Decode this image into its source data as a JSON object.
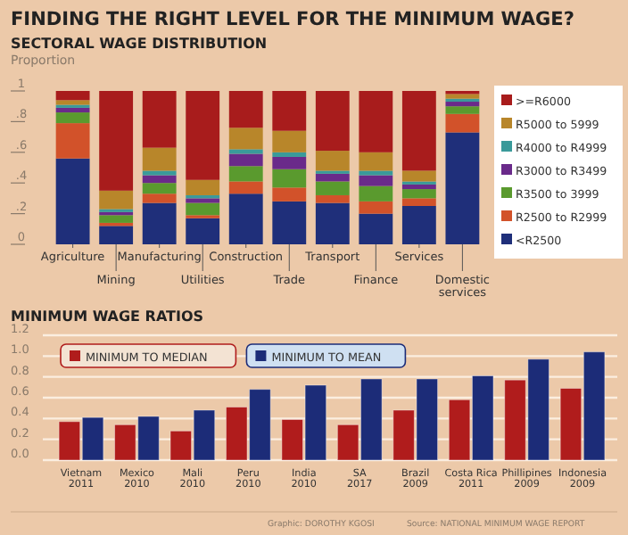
{
  "chart_data": [
    {
      "type": "bar",
      "title": "FINDING THE RIGHT LEVEL FOR THE MINIMUM WAGE?",
      "subtitle": "SECTORAL WAGE DISTRIBUTION",
      "ylabel": "Proportion",
      "stacked": true,
      "categories": [
        "Agriculture",
        "Mining",
        "Manufacturing",
        "Utilities",
        "Construction",
        "Trade",
        "Transport",
        "Finance",
        "Services",
        "Domestic\nservices"
      ],
      "series": [
        {
          "name": "<R2500",
          "color": "#1f2f7a",
          "values": [
            0.56,
            0.12,
            0.27,
            0.17,
            0.33,
            0.28,
            0.27,
            0.2,
            0.25,
            0.73
          ]
        },
        {
          "name": "R2500 to R2999",
          "color": "#d2522a",
          "values": [
            0.23,
            0.02,
            0.06,
            0.02,
            0.08,
            0.09,
            0.05,
            0.08,
            0.05,
            0.12
          ]
        },
        {
          "name": "R3500 to 3999",
          "color": "#5a9a2e",
          "values": [
            0.07,
            0.05,
            0.07,
            0.08,
            0.1,
            0.12,
            0.09,
            0.1,
            0.06,
            0.05
          ]
        },
        {
          "name": "R3000 to R3499",
          "color": "#6a2a8a",
          "values": [
            0.03,
            0.02,
            0.05,
            0.03,
            0.08,
            0.08,
            0.05,
            0.07,
            0.03,
            0.03
          ]
        },
        {
          "name": "R4000 to R4999",
          "color": "#3a9a9a",
          "values": [
            0.02,
            0.02,
            0.03,
            0.02,
            0.03,
            0.03,
            0.02,
            0.03,
            0.02,
            0.02
          ]
        },
        {
          "name": "R5000 to 5999",
          "color": "#b8862a",
          "values": [
            0.03,
            0.12,
            0.15,
            0.1,
            0.14,
            0.14,
            0.13,
            0.12,
            0.07,
            0.03
          ]
        },
        {
          "name": ">=R6000",
          "color": "#a81c1c",
          "values": [
            0.06,
            0.65,
            0.37,
            0.58,
            0.24,
            0.26,
            0.39,
            0.4,
            0.52,
            0.02
          ]
        }
      ],
      "ylim": [
        0,
        1
      ],
      "yticks": [
        {
          "value": 0,
          "label": "0"
        },
        {
          "value": 0.2,
          "label": ".2"
        },
        {
          "value": 0.4,
          "label": ".4"
        },
        {
          "value": 0.6,
          "label": ".6"
        },
        {
          "value": 0.8,
          "label": ".8"
        },
        1
      ],
      "legend": "right"
    },
    {
      "type": "bar",
      "title": "MINIMUM WAGE RATIOS",
      "categories": [
        "Vietnam\n2011",
        "Mexico\n2010",
        "Mali\n2010",
        "Peru\n2010",
        "India\n2010",
        "SA\n2017",
        "Brazil\n2009",
        "Costa Rica\n2011",
        "Phillipines\n2009",
        "Indonesia\n2009"
      ],
      "series": [
        {
          "name": "MINIMUM TO MEDIAN",
          "color": "#b01c1c",
          "values": [
            0.37,
            0.34,
            0.28,
            0.51,
            0.39,
            0.34,
            0.48,
            0.58,
            0.77,
            0.69
          ]
        },
        {
          "name": "MINIMUM TO MEAN",
          "color": "#1c2c78",
          "values": [
            0.41,
            0.42,
            0.48,
            0.68,
            0.72,
            0.78,
            0.78,
            0.81,
            0.97,
            1.04
          ]
        }
      ],
      "ylim": [
        0,
        1.2
      ],
      "yticks": [
        {
          "value": 0,
          "label": "0.0"
        },
        0.2,
        0.4,
        0.6,
        0.8,
        {
          "value": 1,
          "label": "1.0"
        },
        1.2
      ],
      "grid": "y",
      "legend": "top",
      "annotations": [
        "Graphic: DOROTHY KGOSI",
        "Source: NATIONAL MINIMUM WAGE REPORT"
      ]
    }
  ]
}
